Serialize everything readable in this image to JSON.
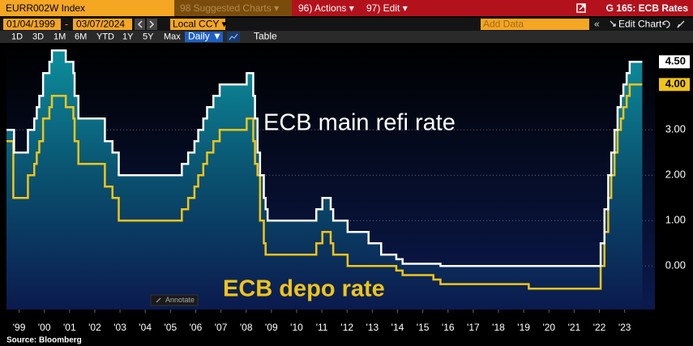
{
  "ui": {
    "ticker": "EURR002W Index",
    "suggested": "98 Suggested Charts ▾",
    "actions": "96) Actions ▾",
    "edit": "97) Edit ▾",
    "page_title": "G 165: ECB Rates",
    "start_date": "01/04/1999",
    "date_separator": "-",
    "end_date": "03/07/2024",
    "currency": "Local CCY ▾",
    "add_data": "Add Data",
    "collapse": "«",
    "edit_chart": "Edit Chart",
    "ranges": [
      "1D",
      "3D",
      "1M",
      "6M",
      "YTD",
      "1Y",
      "5Y",
      "Max"
    ],
    "frequency": "Daily ▼",
    "table": "Table",
    "annotate": "Annotate",
    "source": "Source: Bloomberg"
  },
  "chart_data": {
    "type": "step",
    "annotations": [
      "ECB main refi rate",
      "ECB depo rate"
    ],
    "xlim": [
      1999,
      2024.7
    ],
    "ylim": [
      -0.96,
      4.88
    ],
    "grid": true,
    "xticks": [
      {
        "value": 1999.5,
        "label": "'99"
      },
      {
        "value": 2000.5,
        "label": "'00"
      },
      {
        "value": 2001.5,
        "label": "'01"
      },
      {
        "value": 2002.5,
        "label": "'02"
      },
      {
        "value": 2003.5,
        "label": "'03"
      },
      {
        "value": 2004.5,
        "label": "'04"
      },
      {
        "value": 2005.5,
        "label": "'05"
      },
      {
        "value": 2006.5,
        "label": "'06"
      },
      {
        "value": 2007.5,
        "label": "'07"
      },
      {
        "value": 2008.5,
        "label": "'08"
      },
      {
        "value": 2009.5,
        "label": "'09"
      },
      {
        "value": 2010.5,
        "label": "'10"
      },
      {
        "value": 2011.5,
        "label": "'11"
      },
      {
        "value": 2012.5,
        "label": "'12"
      },
      {
        "value": 2013.5,
        "label": "'13"
      },
      {
        "value": 2014.5,
        "label": "'14"
      },
      {
        "value": 2015.5,
        "label": "'15"
      },
      {
        "value": 2016.5,
        "label": "'16"
      },
      {
        "value": 2017.5,
        "label": "'17"
      },
      {
        "value": 2018.5,
        "label": "'18"
      },
      {
        "value": 2019.5,
        "label": "'19"
      },
      {
        "value": 2020.5,
        "label": "'20"
      },
      {
        "value": 2021.5,
        "label": "'21"
      },
      {
        "value": 2022.5,
        "label": "'22"
      },
      {
        "value": 2023.5,
        "label": "'23"
      }
    ],
    "yticks": [
      {
        "value": 0,
        "label": "0.00"
      },
      {
        "value": 1,
        "label": "1.00"
      },
      {
        "value": 2,
        "label": "2.00"
      },
      {
        "value": 3,
        "label": "3.00"
      }
    ],
    "series": [
      {
        "name": "ECB main refi rate",
        "color": "#ffffff",
        "last_label": "4.50",
        "x": [
          1999.0,
          1999.3,
          1999.85,
          2000.1,
          2000.2,
          2000.3,
          2000.45,
          2000.7,
          2000.8,
          2001.35,
          2001.65,
          2001.7,
          2001.85,
          2002.9,
          2003.2,
          2003.45,
          2005.95,
          2006.2,
          2006.45,
          2006.6,
          2006.8,
          2006.95,
          2007.2,
          2007.45,
          2008.52,
          2008.78,
          2008.85,
          2008.95,
          2009.05,
          2009.2,
          2009.27,
          2009.35,
          2011.28,
          2011.52,
          2011.85,
          2011.95,
          2012.52,
          2013.35,
          2013.85,
          2014.45,
          2014.7,
          2016.2,
          2022.55,
          2022.7,
          2022.85,
          2022.97,
          2023.1,
          2023.22,
          2023.35,
          2023.45,
          2023.58,
          2023.7,
          2024.2
        ],
        "values": [
          3.0,
          2.5,
          3.0,
          3.25,
          3.5,
          3.75,
          4.25,
          4.5,
          4.75,
          4.5,
          4.25,
          3.75,
          3.25,
          2.75,
          2.5,
          2.0,
          2.25,
          2.5,
          2.75,
          3.0,
          3.25,
          3.5,
          3.75,
          4.0,
          4.25,
          3.75,
          3.25,
          2.5,
          2.0,
          1.5,
          1.25,
          1.0,
          1.25,
          1.5,
          1.25,
          1.0,
          0.75,
          0.5,
          0.25,
          0.15,
          0.05,
          0.0,
          0.5,
          1.25,
          2.0,
          2.5,
          3.0,
          3.5,
          3.75,
          4.0,
          4.25,
          4.5,
          4.5
        ]
      },
      {
        "name": "ECB depo rate",
        "color": "#f0c419",
        "last_label": "4.00",
        "x": [
          1999.0,
          1999.27,
          1999.85,
          2000.1,
          2000.2,
          2000.3,
          2000.45,
          2000.7,
          2000.8,
          2001.35,
          2001.65,
          2001.7,
          2001.85,
          2002.9,
          2003.2,
          2003.45,
          2005.95,
          2006.2,
          2006.45,
          2006.6,
          2006.8,
          2006.95,
          2007.2,
          2007.45,
          2008.52,
          2008.78,
          2008.85,
          2008.95,
          2009.05,
          2009.2,
          2009.27,
          2011.28,
          2011.52,
          2011.85,
          2011.95,
          2012.52,
          2014.45,
          2014.7,
          2015.92,
          2016.2,
          2019.7,
          2022.55,
          2022.7,
          2022.85,
          2022.97,
          2023.1,
          2023.22,
          2023.35,
          2023.45,
          2023.58,
          2023.7,
          2024.2
        ],
        "values": [
          2.75,
          1.5,
          2.0,
          2.25,
          2.5,
          2.75,
          3.25,
          3.5,
          3.75,
          3.5,
          3.25,
          2.75,
          2.25,
          1.75,
          1.5,
          1.0,
          1.25,
          1.5,
          1.75,
          2.0,
          2.25,
          2.5,
          2.75,
          3.0,
          3.25,
          2.75,
          2.25,
          2.0,
          1.0,
          0.5,
          0.25,
          0.5,
          0.75,
          0.5,
          0.25,
          0.0,
          -0.1,
          -0.2,
          -0.3,
          -0.4,
          -0.5,
          0.0,
          0.75,
          1.5,
          2.0,
          2.5,
          3.0,
          3.25,
          3.5,
          3.75,
          4.0,
          4.0
        ]
      }
    ]
  }
}
